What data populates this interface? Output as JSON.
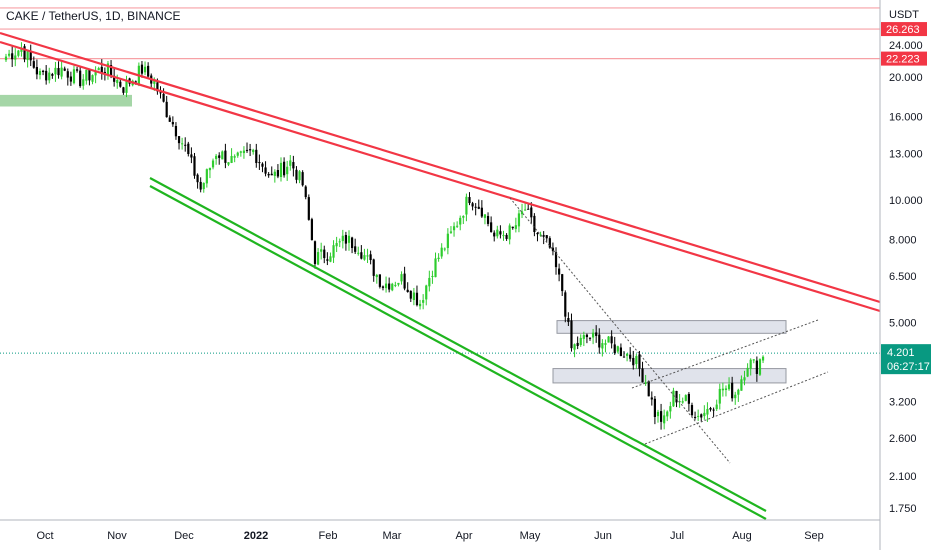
{
  "header": {
    "title": "CAKE / TetherUS, 1D, BINANCE"
  },
  "chart_data": {
    "type": "candlestick",
    "symbol": "CAKE / TetherUS",
    "interval": "1D",
    "exchange": "BINANCE",
    "currency": "USDT",
    "y_scale": "log",
    "ylim": [
      1.6,
      30
    ],
    "y_ticks": [
      "24.000",
      "20.000",
      "16.000",
      "13.000",
      "10.000",
      "8.000",
      "6.500",
      "5.000",
      "3.200",
      "2.600",
      "2.100",
      "1.750"
    ],
    "x_ticks": [
      "Oct",
      "Nov",
      "Dec",
      "2022",
      "Feb",
      "Mar",
      "Apr",
      "May",
      "Jun",
      "Jul",
      "Aug",
      "Sep"
    ],
    "x_tick_bold": "2022",
    "current_price": {
      "label": "4.201",
      "value": 4.201,
      "countdown": "06:27:17",
      "color": "#089981"
    },
    "price_tags": [
      {
        "label": "26.263",
        "value": 26.263,
        "color": "#f23645"
      },
      {
        "label": "22.223",
        "value": 22.223,
        "color": "#f23645"
      }
    ],
    "horizontal_lines": [
      {
        "value": 29.6,
        "color": "#f7a1a6"
      },
      {
        "value": 26.263,
        "color": "#f7a1a6"
      },
      {
        "value": 22.223,
        "color": "#f7a1a6"
      }
    ],
    "colors": {
      "up": "#26a69a",
      "down": "#000000",
      "candle_up": "#2ecc2e",
      "resistance": "#f23645",
      "support": "#1fb51f"
    },
    "anchors": [
      {
        "i": 0,
        "p": 22.5
      },
      {
        "i": 5,
        "p": 23.6
      },
      {
        "i": 11,
        "p": 20.2
      },
      {
        "i": 18,
        "p": 21.0
      },
      {
        "i": 24,
        "p": 19.7
      },
      {
        "i": 32,
        "p": 21.1
      },
      {
        "i": 38,
        "p": 18.9
      },
      {
        "i": 44,
        "p": 20.9
      },
      {
        "i": 48,
        "p": 19.4
      },
      {
        "i": 52,
        "p": 16.5
      },
      {
        "i": 58,
        "p": 13.4
      },
      {
        "i": 63,
        "p": 10.6
      },
      {
        "i": 68,
        "p": 13.1
      },
      {
        "i": 74,
        "p": 12.4
      },
      {
        "i": 80,
        "p": 13.2
      },
      {
        "i": 86,
        "p": 11.3
      },
      {
        "i": 92,
        "p": 12.4
      },
      {
        "i": 96,
        "p": 10.9
      },
      {
        "i": 100,
        "p": 7.2
      },
      {
        "i": 104,
        "p": 7.4
      },
      {
        "i": 110,
        "p": 8.0
      },
      {
        "i": 114,
        "p": 7.7
      },
      {
        "i": 118,
        "p": 6.9
      },
      {
        "i": 122,
        "p": 6.2
      },
      {
        "i": 128,
        "p": 6.4
      },
      {
        "i": 134,
        "p": 5.6
      },
      {
        "i": 138,
        "p": 6.8
      },
      {
        "i": 144,
        "p": 8.2
      },
      {
        "i": 150,
        "p": 10.2
      },
      {
        "i": 154,
        "p": 9.5
      },
      {
        "i": 158,
        "p": 8.1
      },
      {
        "i": 164,
        "p": 8.4
      },
      {
        "i": 168,
        "p": 9.5
      },
      {
        "i": 171,
        "p": 8.4
      },
      {
        "i": 176,
        "p": 7.6
      },
      {
        "i": 180,
        "p": 6.0
      },
      {
        "i": 183,
        "p": 4.3
      },
      {
        "i": 188,
        "p": 4.6
      },
      {
        "i": 193,
        "p": 4.5
      },
      {
        "i": 198,
        "p": 4.3
      },
      {
        "i": 203,
        "p": 4.1
      },
      {
        "i": 207,
        "p": 3.6
      },
      {
        "i": 210,
        "p": 3.0
      },
      {
        "i": 213,
        "p": 2.85
      },
      {
        "i": 216,
        "p": 3.3
      },
      {
        "i": 220,
        "p": 3.2
      },
      {
        "i": 224,
        "p": 2.95
      },
      {
        "i": 228,
        "p": 3.1
      },
      {
        "i": 232,
        "p": 3.45
      },
      {
        "i": 236,
        "p": 3.35
      },
      {
        "i": 240,
        "p": 4.0
      },
      {
        "i": 243,
        "p": 3.9
      },
      {
        "i": 245,
        "p": 4.2
      }
    ]
  }
}
